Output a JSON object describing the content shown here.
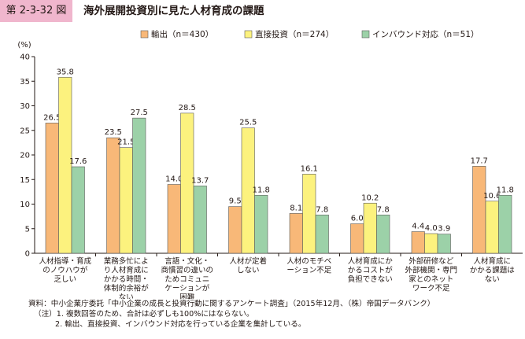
{
  "figure": {
    "number": "第 2-3-32 図",
    "title": "海外展開投資別に見た人材育成の課題"
  },
  "notes": {
    "source": "資料：中小企業庁委託「中小企業の成長と投資行動に関するアンケート調査」（2015年12月、（株）帝国データバンク）",
    "note1": "（注）1. 複数回答のため、合計は必ずしも100%にはならない。",
    "note2": "2. 輸出、直接投資、インバウンド対応を行っている企業を集計している。"
  },
  "colors": {
    "export": "#f8b878",
    "direct_investment": "#fcf27e",
    "inbound": "#9cd1a8",
    "bar_stroke": "#5a5a5a",
    "axis": "#231815",
    "badge": "#f0b6cd"
  },
  "chart_data": {
    "type": "bar",
    "ylabel": "(%)",
    "ylim": [
      0,
      40
    ],
    "yticks": [
      0,
      5,
      10,
      15,
      20,
      25,
      30,
      35,
      40
    ],
    "grid": false,
    "legend_position": "top",
    "categories": [
      [
        "人材指導・育成",
        "のノウハウが",
        "乏しい"
      ],
      [
        "業務多忙によ",
        "り人材育成に",
        "かかる時間・",
        "体制的余裕が",
        "ない"
      ],
      [
        "言語・文化・",
        "商慣習の違いの",
        "ためコミュニ",
        "ケーションが",
        "困難"
      ],
      [
        "人材が定着",
        "しない"
      ],
      [
        "人材のモチベ",
        "ーション不足"
      ],
      [
        "人材育成にか",
        "かるコストが",
        "負担できない"
      ],
      [
        "外部研修など",
        "外部機関・専門",
        "家とのネット",
        "ワーク不足"
      ],
      [
        "人材育成に",
        "かかる課題は",
        "ない"
      ]
    ],
    "series": [
      {
        "name": "輸出（n＝430）",
        "values": [
          26.5,
          23.5,
          14.0,
          9.5,
          8.1,
          6.0,
          4.4,
          17.7
        ],
        "labels": [
          "26.5",
          "23.5",
          "14.0",
          "9.5",
          "8.1",
          "6.0",
          "4.4",
          "17.7"
        ]
      },
      {
        "name": "直接投資（n＝274）",
        "values": [
          35.8,
          21.5,
          28.5,
          25.5,
          16.1,
          10.2,
          4.0,
          10.6
        ],
        "labels": [
          "35.8",
          "21.5",
          "28.5",
          "25.5",
          "16.1",
          "10.2",
          "4.0",
          "10.6"
        ]
      },
      {
        "name": "インバウンド対応（n＝51）",
        "values": [
          17.6,
          27.5,
          13.7,
          11.8,
          7.8,
          7.8,
          3.9,
          11.8
        ],
        "labels": [
          "17.6",
          "27.5",
          "13.7",
          "11.8",
          "7.8",
          "7.8",
          "3.9",
          "11.8"
        ]
      }
    ]
  }
}
